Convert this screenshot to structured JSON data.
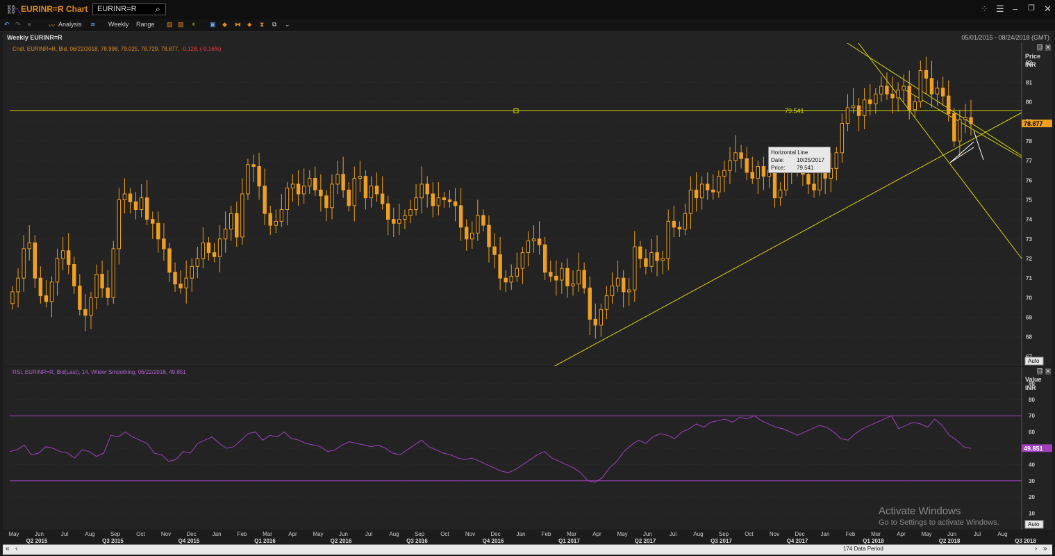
{
  "window": {
    "app_title": "EURINR=R Chart",
    "ric_value": "EURINR=R"
  },
  "toolbar": {
    "analysis_label": "Analysis",
    "interval_label": "Weekly",
    "range_label": "Range"
  },
  "header": {
    "chart_title": "Weekly EURINR=R",
    "date_range": "05/01/2015 - 08/24/2018 (GMT)"
  },
  "price_panel": {
    "legend_main": "Cndl, EURINR=R, Bid, 06/22/2018, 78.998, 79.025, 78.729, 78.877,",
    "legend_change": "-0.128, (-0.16%)",
    "axis_title": "Price",
    "axis_unit": "INR",
    "auto_label": "Auto",
    "last_price": "78.877",
    "hline_label": "79.541",
    "y_ticks": [
      "67",
      "68",
      "69",
      "70",
      "71",
      "72",
      "73",
      "74",
      "75",
      "76",
      "77",
      "78",
      "79",
      "80",
      "81",
      "82"
    ],
    "tooltip": {
      "title": "Horizontal Line",
      "date_key": "Date:",
      "date_val": "10/25/2017",
      "price_key": "Price:",
      "price_val": "79.541"
    }
  },
  "rsi_panel": {
    "legend": "RSI, EURINR=R, Bid(Last),   14, Wilder Smoothing, 06/22/2018, 49.851",
    "axis_title": "Value",
    "axis_unit": "INR",
    "auto_label": "Auto",
    "last_value": "49.851",
    "y_ticks": [
      "10",
      "20",
      "30",
      "40",
      "50",
      "60",
      "70",
      "80",
      "90"
    ]
  },
  "x_axis": {
    "months": [
      "May",
      "Jun",
      "Jul",
      "Aug",
      "Sep",
      "Oct",
      "Nov",
      "Dec",
      "Jan",
      "Feb",
      "Mar",
      "Apr",
      "May",
      "Jun",
      "Jul",
      "Aug",
      "Sep",
      "Oct",
      "Nov",
      "Dec",
      "Jan",
      "Feb",
      "Mar",
      "Apr",
      "May",
      "Jun",
      "Jul",
      "Aug",
      "Sep",
      "Oct",
      "Nov",
      "Dec",
      "Jan",
      "Feb",
      "Mar",
      "Apr",
      "May",
      "Jun",
      "Jul",
      "Aug"
    ],
    "quarters": [
      "Q2 2015",
      "Q3 2015",
      "Q4 2015",
      "Q1 2016",
      "Q2 2016",
      "Q3 2016",
      "Q4 2016",
      "Q1 2017",
      "Q2 2017",
      "Q3 2017",
      "Q4 2017",
      "Q1 2018",
      "Q2 2018",
      "Q3 2018"
    ]
  },
  "status": {
    "data_period": "174 Data Period"
  },
  "watermark": {
    "line1": "Activate Windows",
    "line2": "Go to Settings to activate Windows."
  },
  "colors": {
    "candle": "#f0a020",
    "trendline": "#d8d800",
    "rsi": "#a040c0",
    "accent": "#e08a1e"
  },
  "chart_data": {
    "type": "candlestick",
    "instrument": "EURINR=R",
    "ylim": [
      66.5,
      83
    ],
    "rsi_ylim": [
      0,
      100
    ],
    "horizontal_line": 79.541,
    "rsi_bands": [
      30,
      70
    ],
    "closes": [
      70.3,
      71.0,
      72.5,
      72.8,
      71.0,
      70.1,
      69.8,
      70.8,
      72.0,
      72.4,
      71.7,
      70.6,
      69.4,
      69.1,
      70.0,
      71.2,
      70.5,
      70.0,
      72.5,
      75.0,
      75.3,
      74.9,
      74.5,
      75.1,
      74.0,
      73.8,
      73.0,
      72.5,
      71.3,
      70.7,
      70.5,
      71.0,
      71.6,
      72.0,
      72.8,
      72.3,
      72.1,
      73.0,
      73.5,
      74.3,
      73.1,
      75.3,
      76.8,
      76.7,
      75.7,
      74.3,
      73.7,
      73.9,
      74.5,
      75.6,
      75.8,
      75.3,
      75.7,
      76.1,
      75.5,
      75.2,
      74.6,
      75.8,
      76.3,
      75.5,
      74.7,
      76.1,
      76.2,
      75.1,
      75.7,
      75.3,
      74.8,
      74.0,
      73.8,
      74.0,
      74.2,
      74.5,
      75.1,
      75.8,
      75.3,
      74.7,
      75.1,
      75.0,
      74.9,
      74.7,
      73.6,
      73.0,
      73.3,
      74.2,
      73.7,
      72.6,
      72.2,
      71.0,
      70.8,
      71.1,
      71.5,
      72.3,
      72.9,
      73.0,
      72.7,
      71.3,
      71.1,
      70.9,
      71.5,
      70.6,
      70.7,
      71.4,
      70.5,
      68.9,
      68.6,
      69.4,
      70.1,
      70.6,
      71.0,
      70.3,
      70.4,
      72.6,
      72.0,
      71.6,
      72.3,
      71.9,
      72.0,
      73.9,
      73.6,
      73.5,
      74.3,
      75.5,
      75.1,
      75.8,
      75.5,
      75.4,
      76.2,
      76.5,
      77.0,
      77.4,
      77.1,
      76.4,
      76.1,
      76.7,
      76.2,
      76.5,
      75.1,
      75.5,
      76.6,
      76.9,
      77.1,
      76.3,
      75.8,
      75.5,
      76.4,
      76.1,
      76.6,
      77.4,
      78.9,
      79.7,
      79.8,
      79.3,
      80.1,
      79.9,
      80.4,
      80.8,
      80.4,
      80.2,
      80.6,
      80.8,
      79.6,
      80.0,
      81.6,
      81.2,
      80.4,
      80.7,
      80.3,
      79.4,
      78.0,
      79.1,
      79.2,
      78.88
    ],
    "rsi": [
      48,
      49,
      52,
      46,
      47,
      51,
      50,
      48,
      47,
      44,
      49,
      48,
      45,
      47,
      58,
      57,
      60,
      57,
      55,
      53,
      47,
      46,
      42,
      43,
      48,
      47,
      53,
      55,
      57,
      53,
      50,
      51,
      55,
      59,
      60,
      55,
      58,
      57,
      60,
      56,
      55,
      53,
      52,
      51,
      48,
      49,
      52,
      54,
      53,
      52,
      51,
      52,
      50,
      47,
      46,
      49,
      52,
      55,
      51,
      49,
      47,
      46,
      44,
      43,
      44,
      42,
      40,
      38,
      36,
      35,
      37,
      40,
      43,
      46,
      48,
      44,
      42,
      40,
      38,
      35,
      30,
      29,
      32,
      38,
      42,
      48,
      52,
      55,
      53,
      57,
      59,
      58,
      56,
      60,
      62,
      65,
      63,
      66,
      67,
      68,
      66,
      69,
      68,
      70,
      67,
      65,
      63,
      62,
      60,
      58,
      60,
      62,
      64,
      63,
      60,
      56,
      55,
      59,
      62,
      64,
      66,
      68,
      70,
      62,
      64,
      66,
      65,
      63,
      68,
      64,
      58,
      55,
      51,
      49.851
    ]
  }
}
